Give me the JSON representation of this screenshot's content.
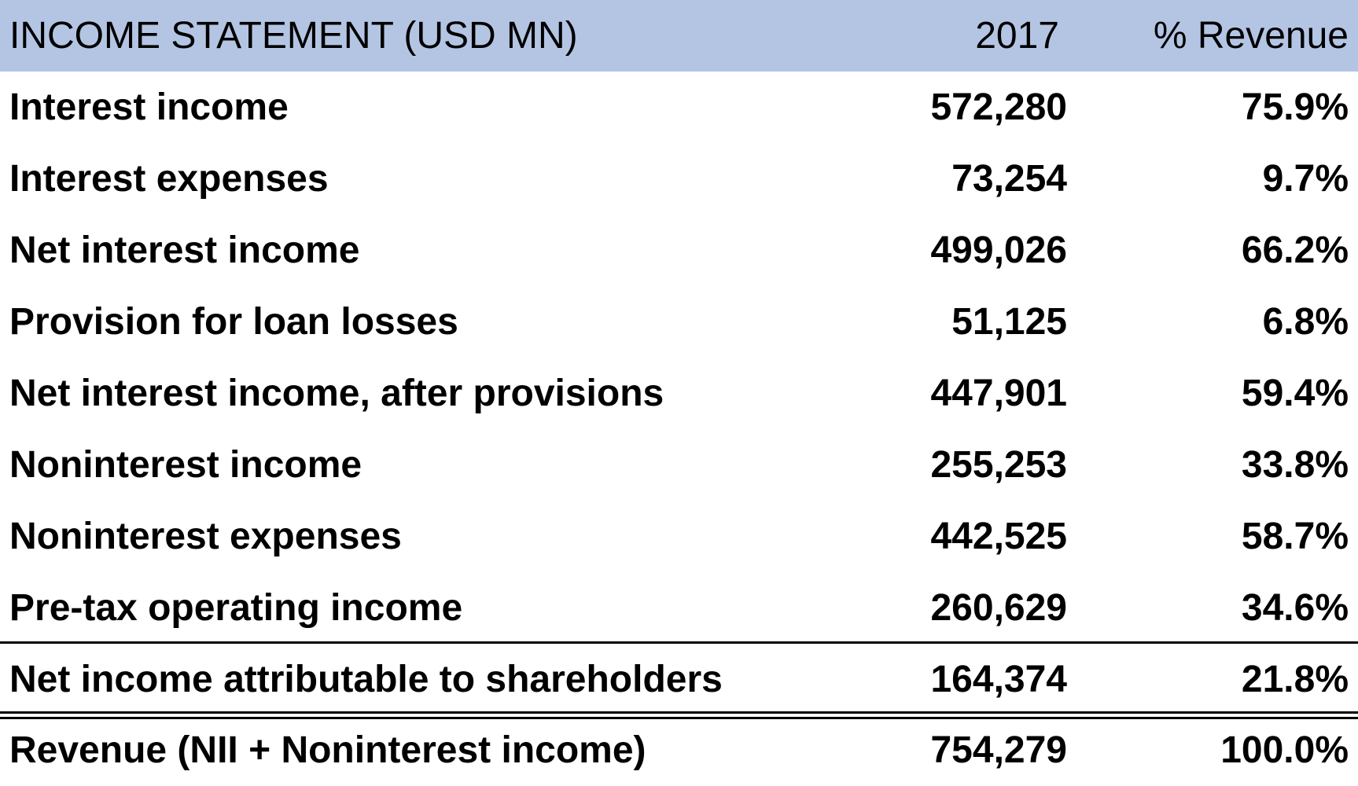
{
  "header": {
    "title": "INCOME STATEMENT (USD MN)",
    "year": "2017",
    "pct": "% Revenue"
  },
  "rows": [
    {
      "label": "Interest income",
      "value": "572,280",
      "pct": "75.9%"
    },
    {
      "label": "Interest expenses",
      "value": "73,254",
      "pct": "9.7%"
    },
    {
      "label": "Net interest income",
      "value": "499,026",
      "pct": "66.2%"
    },
    {
      "label": "Provision for loan losses",
      "value": "51,125",
      "pct": "6.8%"
    },
    {
      "label": "Net interest income, after provisions",
      "value": "447,901",
      "pct": "59.4%"
    },
    {
      "label": "Noninterest income",
      "value": "255,253",
      "pct": "33.8%"
    },
    {
      "label": "Noninterest expenses",
      "value": "442,525",
      "pct": "58.7%"
    },
    {
      "label": "Pre-tax operating income",
      "value": "260,629",
      "pct": "34.6%"
    },
    {
      "label": "Net income attributable to shareholders",
      "value": "164,374",
      "pct": "21.8%"
    },
    {
      "label": "Revenue (NII + Noninterest income)",
      "value": "754,279",
      "pct": "100.0%"
    }
  ],
  "colors": {
    "header_bg": "#b4c5e4",
    "text": "#000000",
    "rule": "#000000"
  }
}
